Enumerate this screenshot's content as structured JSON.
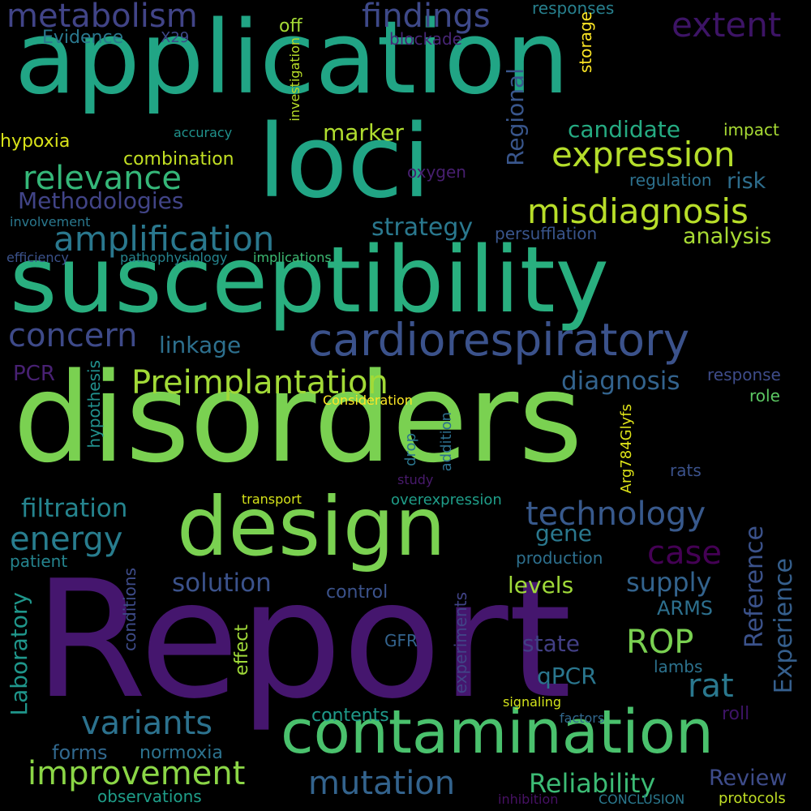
{
  "words": [
    {
      "text": "Report",
      "color": "#45166e"
    },
    {
      "text": "disorders",
      "color": "#7ad151"
    },
    {
      "text": "application",
      "color": "#21a585"
    },
    {
      "text": "loci",
      "color": "#21a585"
    },
    {
      "text": "susceptibility",
      "color": "#29af7f"
    },
    {
      "text": "contamination",
      "color": "#4ac16d"
    },
    {
      "text": "design",
      "color": "#7ad151"
    },
    {
      "text": "cardiorespiratory",
      "color": "#3b528b"
    },
    {
      "text": "metabolism",
      "color": "#414487"
    },
    {
      "text": "findings",
      "color": "#3e4989"
    },
    {
      "text": "extent",
      "color": "#3d1466"
    },
    {
      "text": "expression",
      "color": "#b5de2b"
    },
    {
      "text": "relevance",
      "color": "#35b779"
    },
    {
      "text": "misdiagnosis",
      "color": "#b8de29"
    },
    {
      "text": "amplification",
      "color": "#2a788e"
    },
    {
      "text": "concern",
      "color": "#3e4a89"
    },
    {
      "text": "Preimplantation",
      "color": "#a2da37"
    },
    {
      "text": "technology",
      "color": "#38598c"
    },
    {
      "text": "variants",
      "color": "#2c728e"
    },
    {
      "text": "energy",
      "color": "#287d8e"
    },
    {
      "text": "improvement",
      "color": "#8bd646"
    },
    {
      "text": "mutation",
      "color": "#33638d"
    },
    {
      "text": "case",
      "color": "#440154"
    },
    {
      "text": "ROP",
      "color": "#7ad151"
    },
    {
      "text": "rat",
      "color": "#2a788e"
    },
    {
      "text": "Reliability",
      "color": "#3cbb75"
    },
    {
      "text": "filtration",
      "color": "#25848e"
    },
    {
      "text": "solution",
      "color": "#3b528b"
    },
    {
      "text": "diagnosis",
      "color": "#33638d"
    },
    {
      "text": "strategy",
      "color": "#2a788e"
    },
    {
      "text": "candidate",
      "color": "#25ab82"
    },
    {
      "text": "marker",
      "color": "#b0dd2f"
    },
    {
      "text": "Methodologies",
      "color": "#414487"
    },
    {
      "text": "levels",
      "color": "#a0da39"
    },
    {
      "text": "supply",
      "color": "#33638d"
    },
    {
      "text": "gene",
      "color": "#2a788e"
    },
    {
      "text": "linkage",
      "color": "#2d708e"
    },
    {
      "text": "analysis",
      "color": "#a8db34"
    },
    {
      "text": "Laboratory",
      "color": "#1f968b"
    },
    {
      "text": "Reference",
      "color": "#3b528b"
    },
    {
      "text": "Experience",
      "color": "#355f8d"
    },
    {
      "text": "Regional",
      "color": "#39568c"
    },
    {
      "text": "forms",
      "color": "#31688e"
    },
    {
      "text": "Review",
      "color": "#3e4c8a"
    },
    {
      "text": "state",
      "color": "#423f85"
    },
    {
      "text": "qPCR",
      "color": "#2a768e"
    },
    {
      "text": "ARMS",
      "color": "#2d708e"
    },
    {
      "text": "risk",
      "color": "#2e6e8e"
    },
    {
      "text": "hypoxia",
      "color": "#d8e219"
    },
    {
      "text": "combination",
      "color": "#c2df23"
    },
    {
      "text": "off",
      "color": "#a5db36"
    },
    {
      "text": "Evidence",
      "color": "#2a788e"
    },
    {
      "text": "X29",
      "color": "#3e4989"
    },
    {
      "text": "blockade",
      "color": "#482677"
    },
    {
      "text": "responses",
      "color": "#27808e"
    },
    {
      "text": "storage",
      "color": "#fde725"
    },
    {
      "text": "investigation",
      "color": "#b8de29"
    },
    {
      "text": "accuracy",
      "color": "#20928c"
    },
    {
      "text": "impact",
      "color": "#a8db34"
    },
    {
      "text": "regulation",
      "color": "#2d718e"
    },
    {
      "text": "oxygen",
      "color": "#481f70"
    },
    {
      "text": "involvement",
      "color": "#2a788e"
    },
    {
      "text": "persufflation",
      "color": "#39558c"
    },
    {
      "text": "efficiency",
      "color": "#3b528b"
    },
    {
      "text": "pathophysiology",
      "color": "#25848e"
    },
    {
      "text": "implications",
      "color": "#3dbc74"
    },
    {
      "text": "PCR",
      "color": "#482173"
    },
    {
      "text": "hypothesis",
      "color": "#21908d"
    },
    {
      "text": "Consideration",
      "color": "#fde725"
    },
    {
      "text": "response",
      "color": "#3e4c8a"
    },
    {
      "text": "role",
      "color": "#5cc863"
    },
    {
      "text": "drop",
      "color": "#2b758e"
    },
    {
      "text": "addition",
      "color": "#2d708e"
    },
    {
      "text": "Arg784Glyfs",
      "color": "#dde318"
    },
    {
      "text": "study",
      "color": "#481a6c"
    },
    {
      "text": "transport",
      "color": "#d5e21a"
    },
    {
      "text": "overexpression",
      "color": "#1f9e89"
    },
    {
      "text": "rats",
      "color": "#3b528b"
    },
    {
      "text": "patient",
      "color": "#25848e"
    },
    {
      "text": "production",
      "color": "#2d708e"
    },
    {
      "text": "control",
      "color": "#3b528b"
    },
    {
      "text": "conditions",
      "color": "#3e4c8a"
    },
    {
      "text": "effect",
      "color": "#a0da39"
    },
    {
      "text": "experiments",
      "color": "#414487"
    },
    {
      "text": "GFR",
      "color": "#33638d"
    },
    {
      "text": "lambs",
      "color": "#2c728e"
    },
    {
      "text": "signaling",
      "color": "#d2e21b"
    },
    {
      "text": "factors",
      "color": "#31688e"
    },
    {
      "text": "roll",
      "color": "#3d1466"
    },
    {
      "text": "contents",
      "color": "#1f9a8a"
    },
    {
      "text": "normoxia",
      "color": "#2c728e"
    },
    {
      "text": "observations",
      "color": "#1f9e89"
    },
    {
      "text": "inhibition",
      "color": "#471164"
    },
    {
      "text": "CONCLUSION",
      "color": "#2a788e"
    },
    {
      "text": "protocols",
      "color": "#c0df25"
    }
  ]
}
